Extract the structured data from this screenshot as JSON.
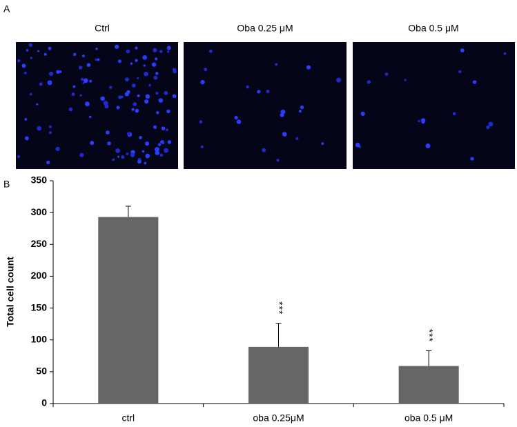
{
  "panel_a": {
    "label": "A",
    "captions": [
      "Ctrl",
      "Oba 0.25 μM",
      "Oba 0.5 μM"
    ]
  },
  "chart_data": {
    "type": "bar",
    "label": "B",
    "y_label": "Total cell count",
    "categories": [
      "ctrl",
      "oba 0.25μM",
      "oba 0.5 μM"
    ],
    "values": [
      293,
      89,
      59
    ],
    "errors": [
      17,
      37,
      24
    ],
    "annotations": [
      null,
      "***",
      "***"
    ],
    "color": "#666666",
    "ylim": [
      0,
      350
    ],
    "yticks": [
      0,
      50,
      100,
      150,
      200,
      250,
      300,
      350
    ]
  }
}
